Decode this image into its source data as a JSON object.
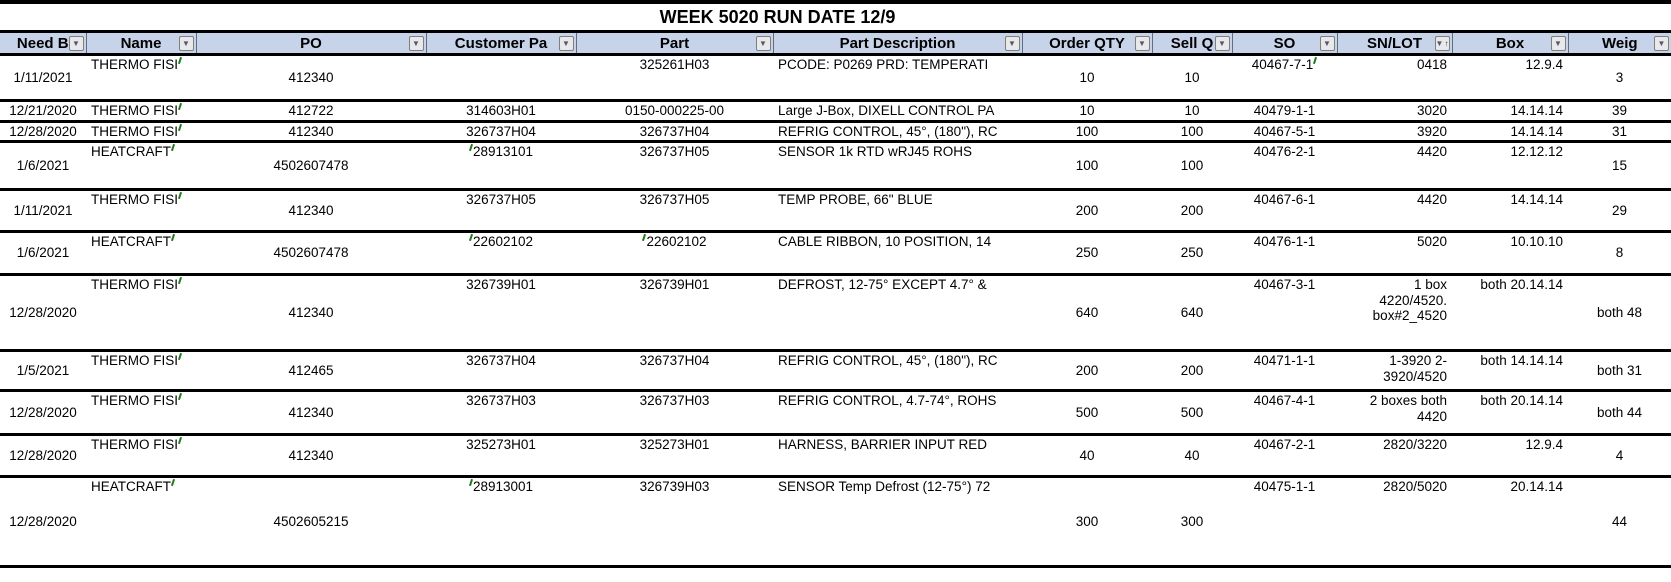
{
  "title": "WEEK 5020 RUN DATE 12/9",
  "filter_icon": "▼",
  "sort_icon": "↑",
  "colors": {
    "header_bg": "#c6d3e8",
    "grid_line": "#000000",
    "tick_mark": "#1e7a1e",
    "filter_button_bg": "#e9e9e9"
  },
  "columns": [
    {
      "key": "need_by",
      "label": "Need B",
      "sorted": false
    },
    {
      "key": "name",
      "label": "Name",
      "sorted": false
    },
    {
      "key": "po",
      "label": "PO",
      "sorted": false
    },
    {
      "key": "customer_part",
      "label": "Customer Pa",
      "sorted": false
    },
    {
      "key": "part",
      "label": "Part",
      "sorted": false
    },
    {
      "key": "part_description",
      "label": "Part Description",
      "sorted": false
    },
    {
      "key": "order_qty",
      "label": "Order QTY",
      "sorted": false
    },
    {
      "key": "sell_qty",
      "label": "Sell Q",
      "sorted": false
    },
    {
      "key": "so",
      "label": "SO",
      "sorted": false
    },
    {
      "key": "sn_lot",
      "label": "SN/LOT",
      "sorted": true
    },
    {
      "key": "box",
      "label": "Box",
      "sorted": false
    },
    {
      "key": "weight",
      "label": "Weig",
      "sorted": false
    }
  ],
  "rows": [
    {
      "need_by": "1/11/2021",
      "name": "THERMO FISI",
      "po": "412340",
      "customer_part": "",
      "part": "325261H03",
      "part_description": "PCODE: P0269 PRD: TEMPERATI",
      "order_qty": "10",
      "sell_qty": "10",
      "so": "40467-7-1",
      "sn_lot": "0418",
      "box": "12.9.4",
      "weight": "3",
      "ticks": {
        "name": true,
        "so": true
      }
    },
    {
      "need_by": "12/21/2020",
      "name": "THERMO FISI",
      "po": "412722",
      "customer_part": "314603H01",
      "part": "0150-000225-00",
      "part_description": "Large J-Box, DIXELL CONTROL PA",
      "order_qty": "10",
      "sell_qty": "10",
      "so": "40479-1-1",
      "sn_lot": "3020",
      "box": "14.14.14",
      "weight": "39",
      "ticks": {
        "name": true
      }
    },
    {
      "need_by": "12/28/2020",
      "name": "THERMO FISI",
      "po": "412340",
      "customer_part": "326737H04",
      "part": "326737H04",
      "part_description": "REFRIG CONTROL, 45°, (180\"), RC",
      "order_qty": "100",
      "sell_qty": "100",
      "so": "40467-5-1",
      "sn_lot": "3920",
      "box": "14.14.14",
      "weight": "31",
      "ticks": {
        "name": true
      }
    },
    {
      "need_by": "1/6/2021",
      "name": "HEATCRAFT",
      "po": "4502607478",
      "customer_part": "28913101",
      "part": "326737H05",
      "part_description": "SENSOR 1k RTD wRJ45 ROHS",
      "order_qty": "100",
      "sell_qty": "100",
      "so": "40476-2-1",
      "sn_lot": "4420",
      "box": "12.12.12",
      "weight": "15",
      "ticks": {
        "name": true,
        "customer_part_lead": true
      }
    },
    {
      "need_by": "1/11/2021",
      "name": "THERMO FISI",
      "po": "412340",
      "customer_part": "326737H05",
      "part": "326737H05",
      "part_description": "TEMP PROBE, 66\" BLUE",
      "order_qty": "200",
      "sell_qty": "200",
      "so": "40467-6-1",
      "sn_lot": "4420",
      "box": "14.14.14",
      "weight": "29",
      "ticks": {
        "name": true
      }
    },
    {
      "need_by": "1/6/2021",
      "name": "HEATCRAFT",
      "po": "4502607478",
      "customer_part": "22602102",
      "part": "22602102",
      "part_description": "CABLE RIBBON, 10 POSITION, 14",
      "order_qty": "250",
      "sell_qty": "250",
      "so": "40476-1-1",
      "sn_lot": "5020",
      "box": "10.10.10",
      "weight": "8",
      "ticks": {
        "name": true,
        "customer_part_lead": true,
        "part_lead": true
      }
    },
    {
      "need_by": "12/28/2020",
      "name": "THERMO FISI",
      "po": "412340",
      "customer_part": "326739H01",
      "part": "326739H01",
      "part_description": "DEFROST, 12-75° EXCEPT 4.7° &",
      "order_qty": "640",
      "sell_qty": "640",
      "so": "40467-3-1",
      "sn_lot": "1 box\n4220/4520.\nbox#2_4520",
      "box": "both 20.14.14",
      "weight": "both 48",
      "ticks": {
        "name": true
      }
    },
    {
      "need_by": "1/5/2021",
      "name": "THERMO FISI",
      "po": "412465",
      "customer_part": "326737H04",
      "part": "326737H04",
      "part_description": "REFRIG CONTROL, 45°, (180\"), RC",
      "order_qty": "200",
      "sell_qty": "200",
      "so": "40471-1-1",
      "sn_lot": "1-3920 2-\n3920/4520",
      "box": "both 14.14.14",
      "weight": "both 31",
      "ticks": {
        "name": true
      }
    },
    {
      "need_by": "12/28/2020",
      "name": "THERMO FISI",
      "po": "412340",
      "customer_part": "326737H03",
      "part": "326737H03",
      "part_description": "REFRIG CONTROL, 4.7-74°, ROHS",
      "order_qty": "500",
      "sell_qty": "500",
      "so": "40467-4-1",
      "sn_lot": "2 boxes both\n4420",
      "box": "both 20.14.14",
      "weight": "both 44",
      "ticks": {
        "name": true
      }
    },
    {
      "need_by": "12/28/2020",
      "name": "THERMO FISI",
      "po": "412340",
      "customer_part": "325273H01",
      "part": "325273H01",
      "part_description": "HARNESS, BARRIER INPUT RED",
      "order_qty": "40",
      "sell_qty": "40",
      "so": "40467-2-1",
      "sn_lot": "2820/3220",
      "box": "12.9.4",
      "weight": "4",
      "ticks": {
        "name": true
      }
    },
    {
      "need_by": "12/28/2020",
      "name": "HEATCRAFT",
      "po": "4502605215",
      "customer_part": "28913001",
      "part": "326739H03",
      "part_description": "SENSOR Temp Defrost (12-75°) 72",
      "order_qty": "300",
      "sell_qty": "300",
      "so": "40475-1-1",
      "sn_lot": "2820/5020",
      "box": "20.14.14",
      "weight": "44",
      "ticks": {
        "name": true,
        "customer_part_lead": true
      }
    }
  ]
}
